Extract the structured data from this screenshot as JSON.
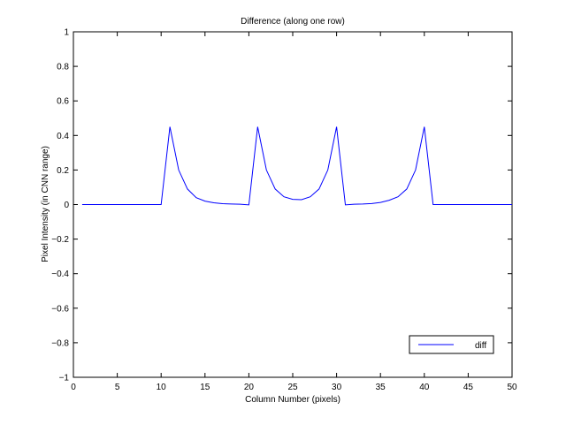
{
  "chart_data": {
    "type": "line",
    "title": "Difference (along one row)",
    "xlabel": "Column Number (pixels)",
    "ylabel": "Pixel Intensity (in CNN range)",
    "xlim": [
      0,
      50
    ],
    "ylim": [
      -1,
      1
    ],
    "xticks": [
      0,
      5,
      10,
      15,
      20,
      25,
      30,
      35,
      40,
      45,
      50
    ],
    "yticks": [
      -1,
      -0.8,
      -0.6,
      -0.4,
      -0.2,
      0,
      0.2,
      0.4,
      0.6,
      0.8,
      1
    ],
    "xtick_labels": [
      "0",
      "5",
      "10",
      "15",
      "20",
      "25",
      "30",
      "35",
      "40",
      "45",
      "50"
    ],
    "ytick_labels": [
      "−1",
      "−0.8",
      "−0.6",
      "−0.4",
      "−0.2",
      "0",
      "0.2",
      "0.4",
      "0.6",
      "0.8",
      "1"
    ],
    "grid": false,
    "legend_position": "bottom-right",
    "series": [
      {
        "name": "diff",
        "color": "#0000ff",
        "x": [
          1,
          2,
          3,
          4,
          5,
          6,
          7,
          8,
          9,
          10,
          11,
          12,
          13,
          14,
          15,
          16,
          17,
          18,
          19,
          20,
          21,
          22,
          23,
          24,
          25,
          26,
          27,
          28,
          29,
          30,
          31,
          32,
          33,
          34,
          35,
          36,
          37,
          38,
          39,
          40,
          41,
          42,
          43,
          44,
          45,
          46,
          47,
          48,
          49,
          50
        ],
        "y": [
          0,
          0,
          0,
          0,
          0,
          0,
          0,
          0,
          0,
          0,
          0.45,
          0.2,
          0.09,
          0.04,
          0.02,
          0.01,
          0.005,
          0.003,
          0.002,
          -0.002,
          0.45,
          0.2,
          0.09,
          0.045,
          0.03,
          0.028,
          0.045,
          0.09,
          0.2,
          0.45,
          -0.002,
          0.002,
          0.003,
          0.006,
          0.012,
          0.025,
          0.045,
          0.09,
          0.2,
          0.45,
          0,
          0,
          0,
          0,
          0,
          0,
          0,
          0,
          0,
          0
        ]
      }
    ]
  }
}
